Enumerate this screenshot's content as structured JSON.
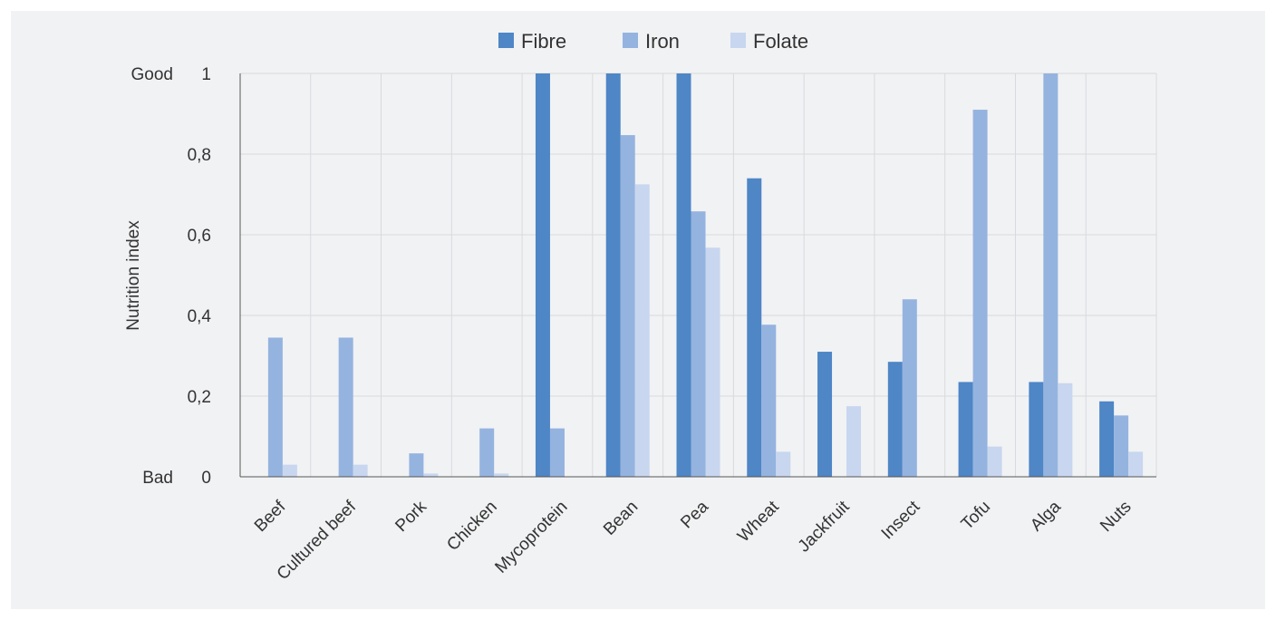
{
  "chart_data": {
    "type": "bar",
    "title": "",
    "xlabel": "",
    "ylabel": "Nutrition index",
    "ylim": [
      0,
      1
    ],
    "ytick_values": [
      0,
      0.2,
      0.4,
      0.6,
      0.8,
      1
    ],
    "ytick_labels": [
      "0",
      "0,2",
      "0,4",
      "0,6",
      "0,8",
      "1"
    ],
    "ytick_qualitative": {
      "bottom": "Bad",
      "top": "Good"
    },
    "grid": true,
    "legend_position": "top",
    "categories": [
      "Beef",
      "Cultured beef",
      "Pork",
      "Chicken",
      "Mycoprotein",
      "Bean",
      "Pea",
      "Wheat",
      "Jackfruit",
      "Insect",
      "Tofu",
      "Alga",
      "Nuts"
    ],
    "series": [
      {
        "name": "Fibre",
        "color": "#4e86c6",
        "values": [
          0,
          0,
          0,
          0,
          1,
          1,
          1,
          0.74,
          0.31,
          0.285,
          0.235,
          0.235,
          0.187
        ]
      },
      {
        "name": "Iron",
        "color": "#95b3df",
        "values": [
          0.345,
          0.345,
          0.058,
          0.12,
          0.12,
          0.847,
          0.658,
          0.377,
          0,
          0.44,
          0.91,
          1,
          0.152
        ]
      },
      {
        "name": "Folate",
        "color": "#c8d6ef",
        "values": [
          0.03,
          0.03,
          0.008,
          0.008,
          0,
          0.725,
          0.568,
          0.062,
          0.175,
          0,
          0.075,
          0.232,
          0.062
        ]
      }
    ]
  }
}
